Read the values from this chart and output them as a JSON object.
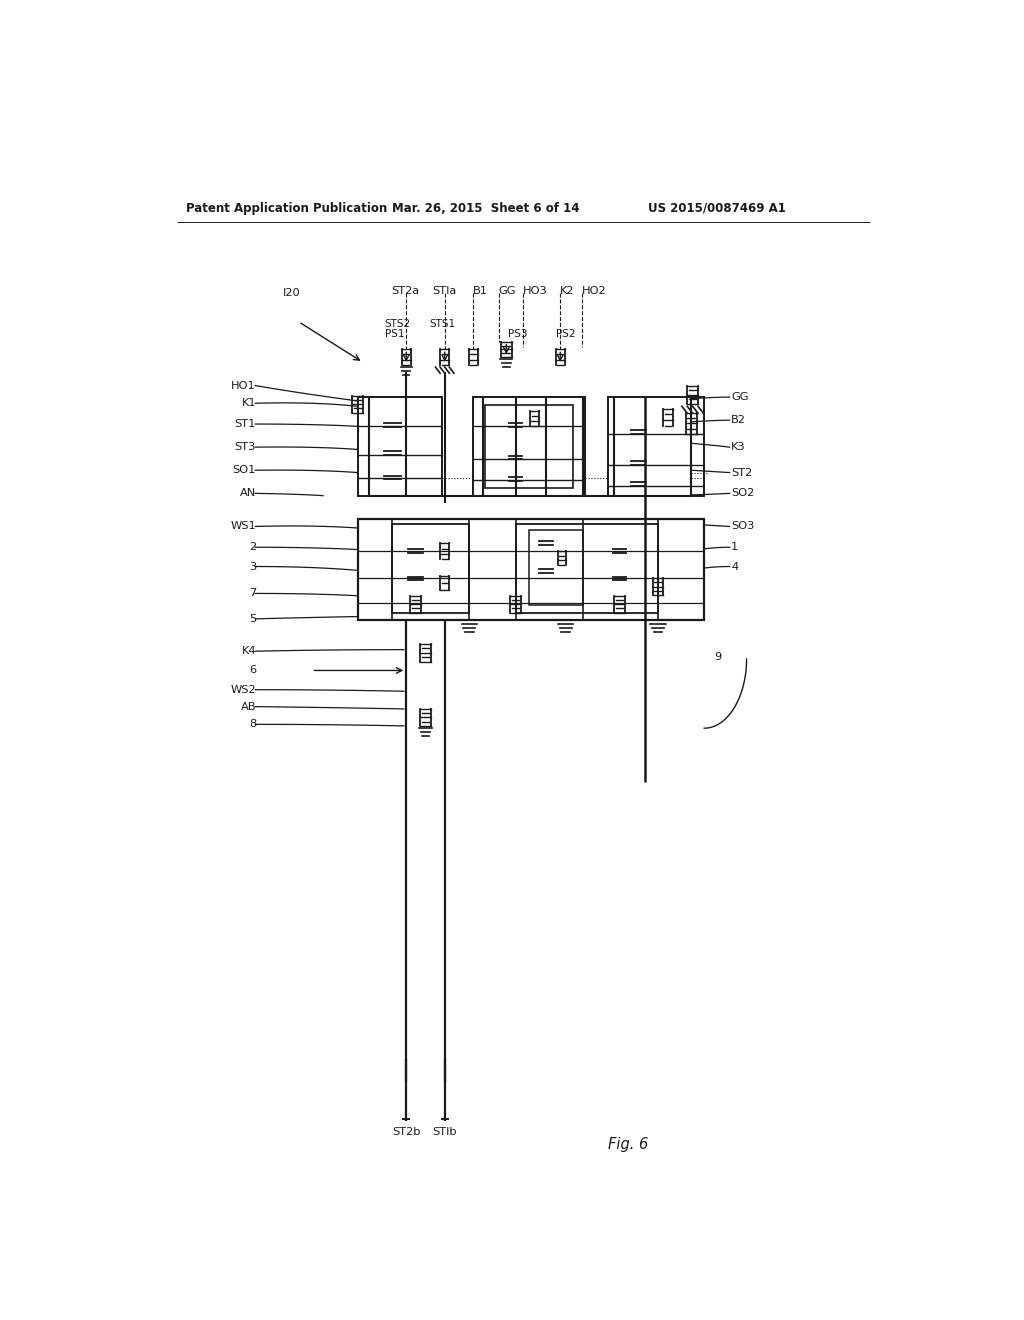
{
  "bg": "#ffffff",
  "lc": "#1a1a1a",
  "header_left": "Patent Application Publication",
  "header_center": "Mar. 26, 2015  Sheet 6 of 14",
  "header_right": "US 2015/0087469 A1",
  "fig_label": "Fig. 6",
  "top_labels": [
    [
      "I20",
      198,
      175
    ],
    [
      "ST2a",
      338,
      172
    ],
    [
      "STla",
      392,
      172
    ],
    [
      "B1",
      445,
      172
    ],
    [
      "GG",
      478,
      172
    ],
    [
      "HO3",
      510,
      172
    ],
    [
      "K2",
      558,
      172
    ],
    [
      "HO2",
      586,
      172
    ]
  ],
  "sub_labels": [
    [
      "STS2",
      330,
      215
    ],
    [
      "PS1",
      330,
      228
    ],
    [
      "STS1",
      388,
      215
    ],
    [
      "PS3",
      490,
      228
    ],
    [
      "PS2",
      552,
      228
    ]
  ],
  "left_labels": [
    [
      "HO1",
      163,
      295
    ],
    [
      "K1",
      163,
      318
    ],
    [
      "ST1",
      163,
      345
    ],
    [
      "ST3",
      163,
      375
    ],
    [
      "SO1",
      163,
      405
    ],
    [
      "AN",
      163,
      435
    ],
    [
      "WS1",
      163,
      478
    ],
    [
      "2",
      163,
      505
    ],
    [
      "3",
      163,
      530
    ],
    [
      "7",
      163,
      565
    ],
    [
      "5",
      163,
      598
    ]
  ],
  "right_labels": [
    [
      "GG",
      780,
      310
    ],
    [
      "B2",
      780,
      340
    ],
    [
      "K3",
      780,
      375
    ],
    [
      "ST2",
      780,
      408
    ],
    [
      "SO2",
      780,
      435
    ],
    [
      "SO3",
      780,
      478
    ],
    [
      "1",
      780,
      505
    ],
    [
      "4",
      780,
      530
    ]
  ],
  "lower_left_labels": [
    [
      "K4",
      163,
      640
    ],
    [
      "6",
      163,
      665
    ],
    [
      "WS2",
      163,
      690
    ],
    [
      "AB",
      163,
      712
    ],
    [
      "8",
      163,
      735
    ]
  ],
  "label_9": [
    758,
    648
  ]
}
